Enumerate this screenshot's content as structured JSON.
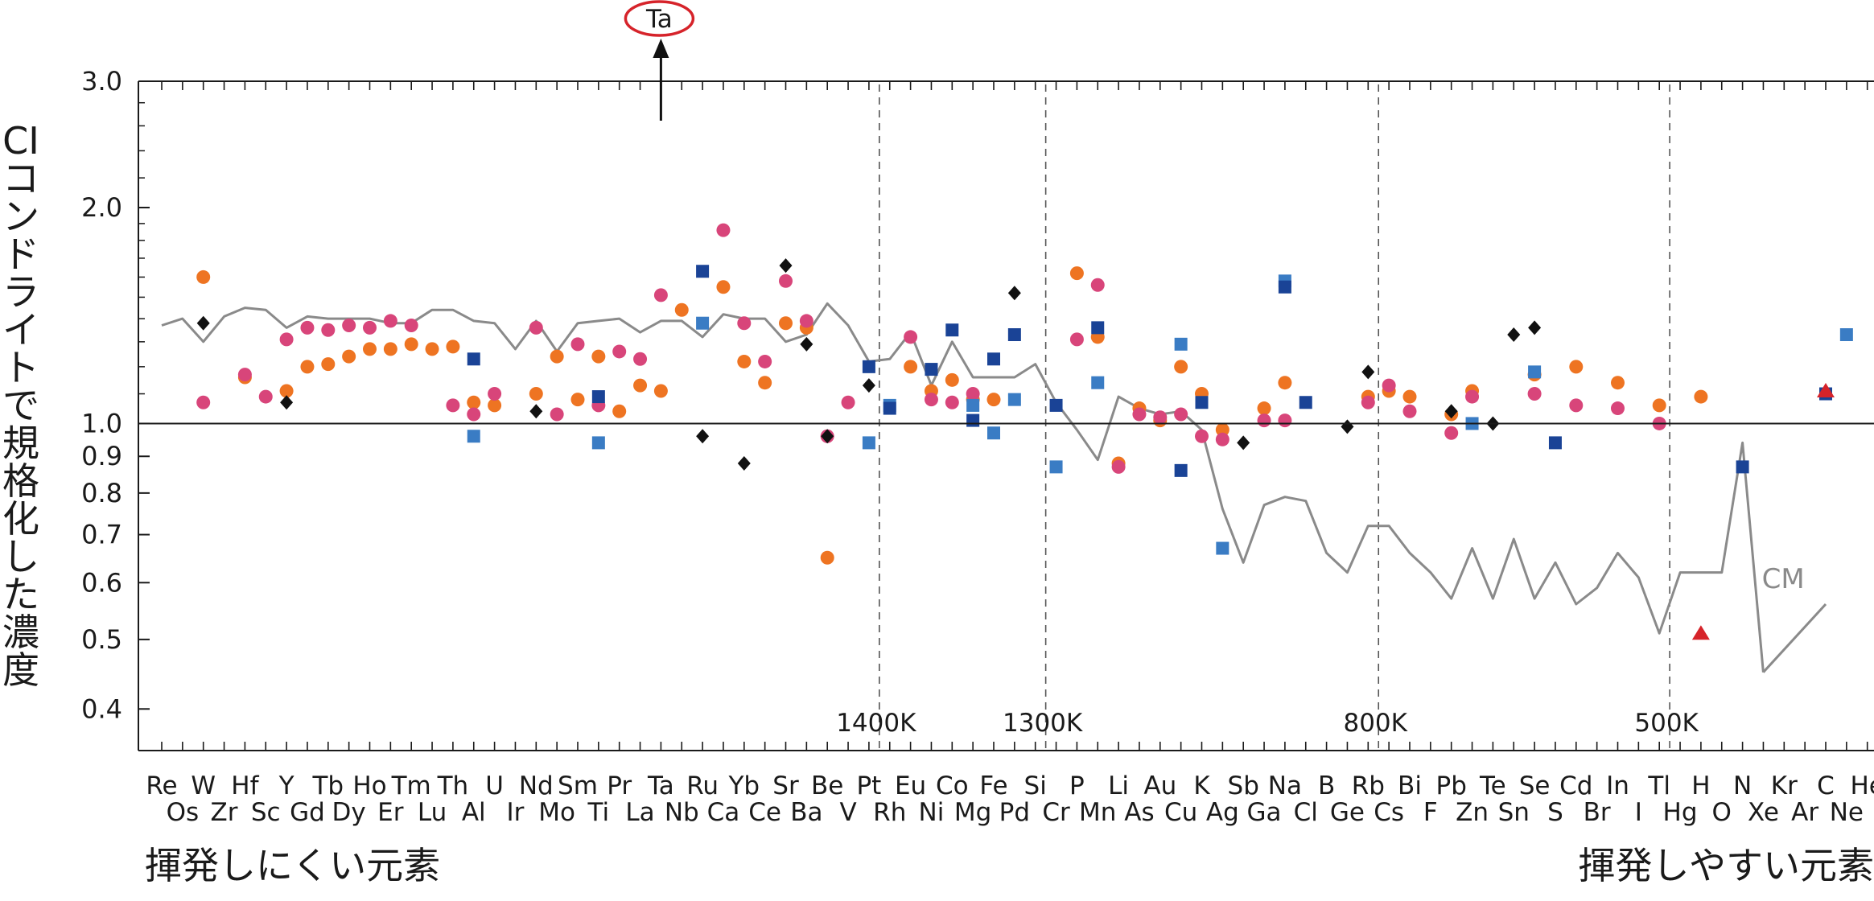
{
  "chart_data": {
    "type": "scatter",
    "title": "",
    "xlabel": "",
    "ylabel": "CIコンドライトで規格化した濃度",
    "y_scale": "log",
    "ylim": [
      0.35,
      3.0
    ],
    "yticks": [
      {
        "v": 3.0,
        "label": "3.0",
        "major": true
      },
      {
        "v": 2.0,
        "label": "2.0",
        "major": true
      },
      {
        "v": 1.0,
        "label": "1.0",
        "major": true
      },
      {
        "v": 0.9,
        "label": "0.9",
        "major": false
      },
      {
        "v": 0.8,
        "label": "0.8",
        "major": false
      },
      {
        "v": 0.7,
        "label": "0.7",
        "major": false
      },
      {
        "v": 0.6,
        "label": "0.6",
        "major": false
      },
      {
        "v": 0.5,
        "label": "0.5",
        "major": false
      },
      {
        "v": 0.4,
        "label": "0.4",
        "major": false
      }
    ],
    "elements": [
      "Re",
      "Os",
      "W",
      "Zr",
      "Hf",
      "Sc",
      "Y",
      "Gd",
      "Tb",
      "Dy",
      "Ho",
      "Er",
      "Tm",
      "Lu",
      "Th",
      "Al",
      "U",
      "Ir",
      "Nd",
      "Mo",
      "Sm",
      "Ti",
      "Pr",
      "La",
      "Ta",
      "Nb",
      "Ru",
      "Ca",
      "Yb",
      "Ce",
      "Sr",
      "Ba",
      "Be",
      "V",
      "Pt",
      "Rh",
      "Eu",
      "Ni",
      "Co",
      "Mg",
      "Fe",
      "Pd",
      "Si",
      "Cr",
      "P",
      "Mn",
      "Li",
      "As",
      "Au",
      "Cu",
      "K",
      "Ag",
      "Sb",
      "Ga",
      "Na",
      "Cl",
      "B",
      "Ge",
      "Rb",
      "Cs",
      "Bi",
      "F",
      "Pb",
      "Zn",
      "Te",
      "Sn",
      "Se",
      "S",
      "Cd",
      "Br",
      "In",
      "I",
      "Tl",
      "Hg",
      "H",
      "O",
      "N",
      "Xe",
      "Kr",
      "Ar",
      "C",
      "Ne",
      "He"
    ],
    "temperature_markers": [
      {
        "after": "Pt",
        "label": "1400K"
      },
      {
        "after": "Si",
        "label": "1300K"
      },
      {
        "after": "Rb",
        "label": "800K"
      },
      {
        "after": "Tl",
        "label": "500K"
      }
    ],
    "reference_line": 1.0,
    "cm_line": {
      "label": "CM",
      "segments": [
        [
          [
            "Re",
            1.37
          ],
          [
            "Os",
            1.4
          ],
          [
            "W",
            1.3
          ],
          [
            "Zr",
            1.41
          ],
          [
            "Hf",
            1.45
          ],
          [
            "Sc",
            1.44
          ],
          [
            "Y",
            1.36
          ],
          [
            "Gd",
            1.41
          ],
          [
            "Tb",
            1.4
          ],
          [
            "Dy",
            1.4
          ],
          [
            "Ho",
            1.4
          ],
          [
            "Er",
            1.38
          ],
          [
            "Tm",
            1.38
          ],
          [
            "Lu",
            1.44
          ],
          [
            "Th",
            1.44
          ],
          [
            "Al",
            1.39
          ],
          [
            "U",
            1.38
          ],
          [
            "Ir",
            1.27
          ],
          [
            "Nd",
            1.39
          ],
          [
            "Mo",
            1.26
          ],
          [
            "Sm",
            1.38
          ],
          [
            "Ti",
            1.39
          ],
          [
            "Pr",
            1.4
          ],
          [
            "La",
            1.34
          ],
          [
            "Ta",
            1.39
          ],
          [
            "Nb",
            1.39
          ],
          [
            "Ru",
            1.32
          ],
          [
            "Ca",
            1.42
          ],
          [
            "Yb",
            1.4
          ],
          [
            "Ce",
            1.4
          ],
          [
            "Sr",
            1.3
          ],
          [
            "Ba",
            1.33
          ],
          [
            "Be",
            1.47
          ],
          [
            "V",
            1.37
          ],
          [
            "Pt",
            1.22
          ],
          [
            "Rh",
            1.23
          ],
          [
            "Eu",
            1.34
          ],
          [
            "Ni",
            1.13
          ],
          [
            "Co",
            1.3
          ],
          [
            "Mg",
            1.16
          ],
          [
            "Fe",
            1.16
          ],
          [
            "Pd",
            1.16
          ],
          [
            "Si",
            1.21
          ],
          [
            "Cr",
            1.07
          ],
          [
            "P",
            0.98
          ],
          [
            "Mn",
            0.89
          ],
          [
            "Li",
            1.09
          ],
          [
            "As",
            1.05
          ],
          [
            "Au",
            1.03
          ],
          [
            "Cu",
            1.04
          ],
          [
            "K",
            0.98
          ],
          [
            "Ag",
            0.76
          ],
          [
            "Sb",
            0.64
          ],
          [
            "Ga",
            0.77
          ],
          [
            "Na",
            0.79
          ],
          [
            "Cl",
            0.78
          ],
          [
            "B",
            0.66
          ],
          [
            "Ge",
            0.62
          ],
          [
            "Rb",
            0.72
          ],
          [
            "Cs",
            0.72
          ],
          [
            "Bi",
            0.66
          ],
          [
            "F",
            0.62
          ],
          [
            "Pb",
            0.57
          ],
          [
            "Zn",
            0.67
          ],
          [
            "Te",
            0.57
          ],
          [
            "Sn",
            0.69
          ],
          [
            "Se",
            0.57
          ],
          [
            "S",
            0.64
          ],
          [
            "Cd",
            0.56
          ],
          [
            "Br",
            0.59
          ],
          [
            "In",
            0.66
          ],
          [
            "I",
            0.61
          ],
          [
            "Tl",
            0.51
          ],
          [
            "Hg",
            0.62
          ],
          [
            "H",
            0.62
          ],
          [
            "O",
            0.62
          ],
          [
            "N",
            0.94
          ],
          [
            "Xe",
            0.45
          ]
        ],
        [
          [
            "Xe",
            0.45
          ],
          [
            "C",
            0.56
          ]
        ]
      ]
    },
    "series": [
      {
        "marker": "circle",
        "color": "#ee7422",
        "points": [
          [
            "W",
            1.6
          ],
          [
            "Hf",
            1.16
          ],
          [
            "Y",
            1.11
          ],
          [
            "Gd",
            1.2
          ],
          [
            "Tb",
            1.21
          ],
          [
            "Dy",
            1.24
          ],
          [
            "Ho",
            1.27
          ],
          [
            "Er",
            1.27
          ],
          [
            "Tm",
            1.29
          ],
          [
            "Lu",
            1.27
          ],
          [
            "Th",
            1.28
          ],
          [
            "Al",
            1.07
          ],
          [
            "U",
            1.06
          ],
          [
            "Nd",
            1.1
          ],
          [
            "Mo",
            1.24
          ],
          [
            "Sm",
            1.08
          ],
          [
            "Ti",
            1.24
          ],
          [
            "Pr",
            1.04
          ],
          [
            "La",
            1.13
          ],
          [
            "Ta",
            1.11
          ],
          [
            "Nb",
            1.44
          ],
          [
            "Ca",
            1.55
          ],
          [
            "Yb",
            1.22
          ],
          [
            "Ce",
            1.14
          ],
          [
            "Sr",
            1.38
          ],
          [
            "Ba",
            1.36
          ],
          [
            "Be",
            0.65
          ],
          [
            "Eu",
            1.2
          ],
          [
            "Ni",
            1.11
          ],
          [
            "Co",
            1.15
          ],
          [
            "Mg",
            1.08
          ],
          [
            "Fe",
            1.08
          ],
          [
            "P",
            1.62
          ],
          [
            "Mn",
            1.32
          ],
          [
            "Li",
            0.88
          ],
          [
            "As",
            1.05
          ],
          [
            "Au",
            1.01
          ],
          [
            "Cu",
            1.2
          ],
          [
            "K",
            1.1
          ],
          [
            "Ag",
            0.98
          ],
          [
            "Ga",
            1.05
          ],
          [
            "Na",
            1.14
          ],
          [
            "Rb",
            1.09
          ],
          [
            "Cs",
            1.11
          ],
          [
            "Bi",
            1.09
          ],
          [
            "Pb",
            1.03
          ],
          [
            "Zn",
            1.11
          ],
          [
            "Se",
            1.17
          ],
          [
            "Cd",
            1.2
          ],
          [
            "In",
            1.14
          ],
          [
            "Tl",
            1.06
          ],
          [
            "H",
            1.09
          ]
        ]
      },
      {
        "marker": "circle",
        "color": "#d8457a",
        "points": [
          [
            "W",
            1.07
          ],
          [
            "Hf",
            1.17
          ],
          [
            "Sc",
            1.09
          ],
          [
            "Y",
            1.31
          ],
          [
            "Gd",
            1.36
          ],
          [
            "Tb",
            1.35
          ],
          [
            "Dy",
            1.37
          ],
          [
            "Ho",
            1.36
          ],
          [
            "Er",
            1.39
          ],
          [
            "Tm",
            1.37
          ],
          [
            "Th",
            1.06
          ],
          [
            "Al",
            1.03
          ],
          [
            "U",
            1.1
          ],
          [
            "Nd",
            1.36
          ],
          [
            "Mo",
            1.03
          ],
          [
            "Sm",
            1.29
          ],
          [
            "Ti",
            1.06
          ],
          [
            "Pr",
            1.26
          ],
          [
            "La",
            1.23
          ],
          [
            "Ta",
            1.51
          ],
          [
            "Ca",
            1.86
          ],
          [
            "Yb",
            1.38
          ],
          [
            "Ce",
            1.22
          ],
          [
            "Sr",
            1.58
          ],
          [
            "Ba",
            1.39
          ],
          [
            "Be",
            0.96
          ],
          [
            "V",
            1.07
          ],
          [
            "Eu",
            1.32
          ],
          [
            "Ni",
            1.08
          ],
          [
            "Co",
            1.07
          ],
          [
            "Mg",
            1.1
          ],
          [
            "P",
            1.31
          ],
          [
            "Mn",
            1.56
          ],
          [
            "Li",
            0.87
          ],
          [
            "As",
            1.03
          ],
          [
            "Au",
            1.02
          ],
          [
            "Cu",
            1.03
          ],
          [
            "K",
            0.96
          ],
          [
            "Ag",
            0.95
          ],
          [
            "Ga",
            1.01
          ],
          [
            "Na",
            1.01
          ],
          [
            "Rb",
            1.07
          ],
          [
            "Cs",
            1.13
          ],
          [
            "Bi",
            1.04
          ],
          [
            "Pb",
            0.97
          ],
          [
            "Zn",
            1.09
          ],
          [
            "Se",
            1.1
          ],
          [
            "Cd",
            1.06
          ],
          [
            "In",
            1.05
          ],
          [
            "Tl",
            1.0
          ]
        ]
      },
      {
        "marker": "square",
        "color": "#3a7cc4",
        "points": [
          [
            "Al",
            0.96
          ],
          [
            "Ti",
            0.94
          ],
          [
            "Ru",
            1.38
          ],
          [
            "Pt",
            0.94
          ],
          [
            "Rh",
            1.06
          ],
          [
            "Mg",
            1.06
          ],
          [
            "Fe",
            0.97
          ],
          [
            "Pd",
            1.08
          ],
          [
            "Cr",
            0.87
          ],
          [
            "Mn",
            1.14
          ],
          [
            "Cu",
            1.29
          ],
          [
            "Ag",
            0.67
          ],
          [
            "Na",
            1.58
          ],
          [
            "Zn",
            1.0
          ],
          [
            "Se",
            1.18
          ],
          [
            "Ne",
            1.33
          ]
        ]
      },
      {
        "marker": "square",
        "color": "#1a4396",
        "points": [
          [
            "Al",
            1.23
          ],
          [
            "Ti",
            1.09
          ],
          [
            "Ru",
            1.63
          ],
          [
            "Pt",
            1.2
          ],
          [
            "Rh",
            1.05
          ],
          [
            "Ni",
            1.19
          ],
          [
            "Co",
            1.35
          ],
          [
            "Mg",
            1.01
          ],
          [
            "Fe",
            1.23
          ],
          [
            "Pd",
            1.33
          ],
          [
            "Cr",
            1.06
          ],
          [
            "Mn",
            1.36
          ],
          [
            "Cu",
            0.86
          ],
          [
            "K",
            1.07
          ],
          [
            "Na",
            1.55
          ],
          [
            "Cl",
            1.07
          ],
          [
            "S",
            0.94
          ],
          [
            "C",
            1.1
          ],
          [
            "N",
            0.87
          ]
        ]
      },
      {
        "marker": "diamond",
        "color": "#111111",
        "points": [
          [
            "W",
            1.38
          ],
          [
            "Y",
            1.07
          ],
          [
            "Nd",
            1.04
          ],
          [
            "Ru",
            0.96
          ],
          [
            "Yb",
            0.88
          ],
          [
            "Sr",
            1.66
          ],
          [
            "Ba",
            1.29
          ],
          [
            "Be",
            0.96
          ],
          [
            "Pt",
            1.13
          ],
          [
            "Pd",
            1.52
          ],
          [
            "Sb",
            0.94
          ],
          [
            "Ge",
            0.99
          ],
          [
            "Rb",
            1.18
          ],
          [
            "Pb",
            1.04
          ],
          [
            "Te",
            1.0
          ],
          [
            "Sn",
            1.33
          ],
          [
            "Se",
            1.36
          ]
        ]
      },
      {
        "marker": "triangle",
        "color": "#d6232a",
        "points": [
          [
            "H",
            0.51
          ],
          [
            "C",
            1.11
          ]
        ]
      }
    ],
    "offscale_annotation": {
      "element": "Ta",
      "label": "Ta",
      "direction": "up"
    }
  },
  "footer": {
    "left": "揮発しにくい元素",
    "right": "揮発しやすい元素"
  }
}
